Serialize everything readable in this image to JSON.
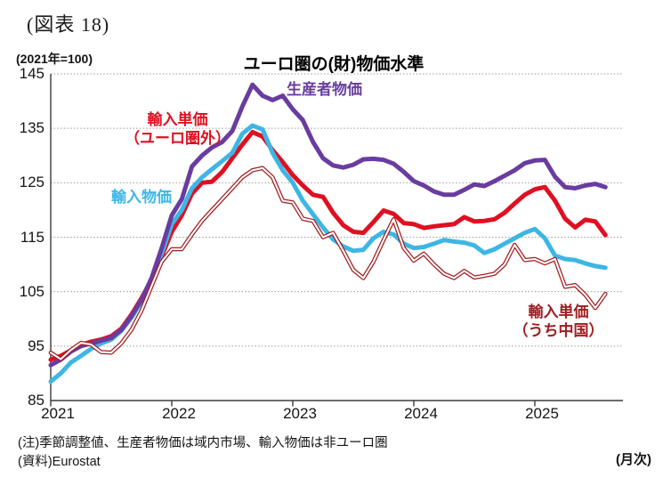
{
  "caption": "(図表 18)",
  "axis_unit_label": "(2021年=100)",
  "title": "ユーロ圏の(財)物価水準",
  "frequency_label": "(月次)",
  "note1": "(注)季節調整値、生産者物価は域内市場、輸入物価は非ユーロ圏",
  "note2": "(資料)Eurostat",
  "chart_data": {
    "type": "line",
    "title": "ユーロ圏の(財)物価水準",
    "index_base": "2021年=100",
    "frequency": "月次",
    "x_unit": "month",
    "x_start": "2021-01",
    "x_end": "2025-08",
    "x_tick_years": [
      2021,
      2022,
      2023,
      2024,
      2025
    ],
    "ylim": [
      85,
      145
    ],
    "y_ticks": [
      85,
      95,
      105,
      115,
      125,
      135,
      145
    ],
    "grid": "horizontal-dotted",
    "legend": "inline-labels",
    "series": [
      {
        "name": "生産者物価",
        "label_line1": "生産者物価",
        "label_line2": "",
        "color": "#693C9F",
        "style": "solid",
        "line_width": 5,
        "values": [
          91.5,
          92.5,
          94,
          95,
          95.5,
          96,
          96.5,
          98,
          100.5,
          103.5,
          107.5,
          113,
          119,
          122,
          128,
          130,
          131.5,
          132.5,
          134.5,
          139,
          143,
          141,
          140.2,
          141,
          138.5,
          136.5,
          132.5,
          129.5,
          128.2,
          127.8,
          128.3,
          129.3,
          129.4,
          129.2,
          128.5,
          127,
          125.3,
          124.5,
          123.4,
          122.8,
          122.8,
          123.7,
          124.7,
          124.4,
          125.3,
          126.3,
          127.3,
          128.6,
          129.1,
          129.2,
          126.1,
          124.2,
          124,
          124.5,
          124.8,
          124.2
        ]
      },
      {
        "name": "輸入単価（ユーロ圏外）",
        "label_line1": "輸入単価",
        "label_line2": "（ユーロ圏外）",
        "color": "#DF1021",
        "style": "solid",
        "line_width": 5,
        "values": [
          92.5,
          93.2,
          94.2,
          95.2,
          95.8,
          96.2,
          96.8,
          98.2,
          100.8,
          103.8,
          107.2,
          111.5,
          116,
          119,
          123,
          125,
          125.2,
          127,
          129.5,
          132,
          134.3,
          133.5,
          131,
          128.8,
          126.4,
          124.5,
          122.8,
          122.4,
          119.5,
          117.2,
          116,
          115.8,
          117.8,
          119.9,
          119.3,
          117.6,
          117.4,
          116.7,
          117,
          117.2,
          117.4,
          118.7,
          117.9,
          118,
          118.3,
          119.5,
          121.2,
          122.8,
          123.8,
          124.2,
          121.7,
          118.4,
          116.8,
          118.2,
          117.9,
          115.4
        ]
      },
      {
        "name": "輸入物価",
        "label_line1": "輸入物価",
        "label_line2": "",
        "color": "#3EB6E4",
        "style": "solid",
        "line_width": 5,
        "values": [
          88.5,
          90,
          92,
          93.2,
          94.5,
          95.5,
          96.2,
          97.8,
          100.2,
          103.2,
          107,
          112,
          117.4,
          120,
          124,
          126,
          127.5,
          129,
          130.5,
          134,
          135.5,
          134.8,
          130.5,
          127.3,
          125,
          121.7,
          119.2,
          116.8,
          114.6,
          113.3,
          112.5,
          112.7,
          114.8,
          116,
          115.5,
          113.8,
          113,
          113.2,
          113.8,
          114.5,
          114.2,
          114,
          113.5,
          112.1,
          112.8,
          113.8,
          114.8,
          115.8,
          116.5,
          114.8,
          111.6,
          111,
          110.8,
          110.2,
          109.7,
          109.4
        ]
      },
      {
        "name": "輸入単価（うち中国）",
        "label_line1": "輸入単価",
        "label_line2": "（うち中国）",
        "color": "#A01D20",
        "style": "double-outline",
        "line_width": 4.6,
        "values": [
          93.8,
          92.6,
          94.3,
          95.6,
          95.3,
          93.9,
          93.8,
          95.5,
          98,
          101.5,
          106,
          110.5,
          112.8,
          112.8,
          115.5,
          118,
          120,
          122,
          124,
          126,
          127.3,
          127.7,
          126,
          121.7,
          121.4,
          118.4,
          118,
          115,
          115.8,
          112.5,
          109,
          107.5,
          110.5,
          114.5,
          118.3,
          113,
          110.7,
          112,
          110,
          108.3,
          107.5,
          108.8,
          107.6,
          107.9,
          108.3,
          110,
          113.6,
          110.8,
          111,
          110.2,
          111,
          105.9,
          106.2,
          104.4,
          102,
          104.6
        ]
      }
    ]
  }
}
